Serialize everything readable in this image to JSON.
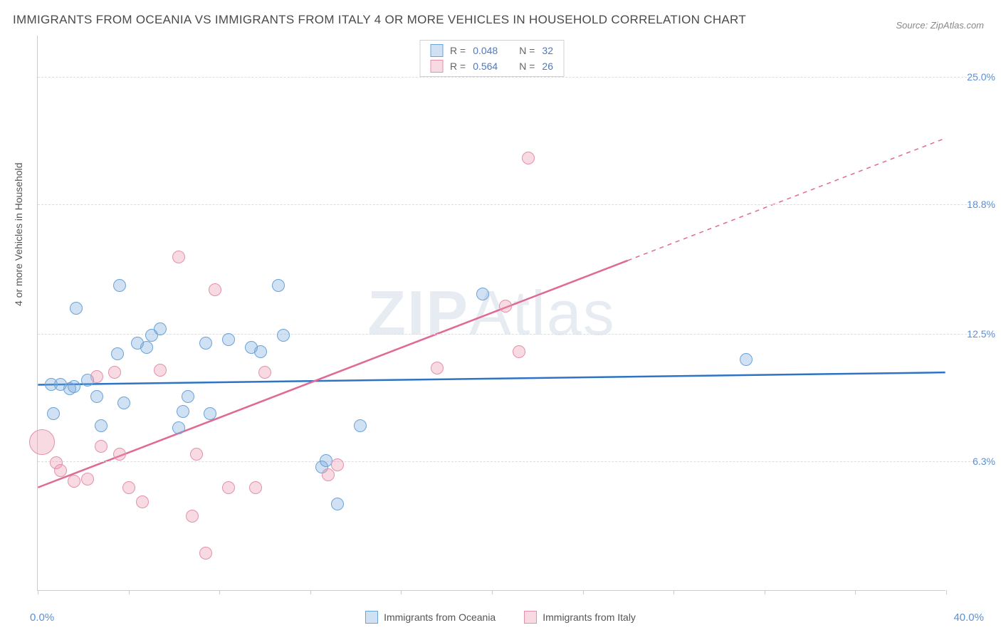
{
  "title": "IMMIGRANTS FROM OCEANIA VS IMMIGRANTS FROM ITALY 4 OR MORE VEHICLES IN HOUSEHOLD CORRELATION CHART",
  "source": "Source: ZipAtlas.com",
  "y_axis_label": "4 or more Vehicles in Household",
  "watermark_prefix": "ZIP",
  "watermark_suffix": "Atlas",
  "chart": {
    "type": "scatter",
    "background_color": "#ffffff",
    "grid_color": "#dddddd",
    "axis_color": "#cccccc",
    "tick_label_color": "#5a8fd6",
    "xlim": [
      0.0,
      40.0
    ],
    "ylim": [
      0.0,
      27.0
    ],
    "x_min_label": "0.0%",
    "x_max_label": "40.0%",
    "x_tick_positions": [
      0,
      4,
      8,
      12,
      16,
      20,
      24,
      28,
      32,
      36,
      40
    ],
    "y_ticks": [
      {
        "value": 6.3,
        "label": "6.3%"
      },
      {
        "value": 12.5,
        "label": "12.5%"
      },
      {
        "value": 18.8,
        "label": "18.8%"
      },
      {
        "value": 25.0,
        "label": "25.0%"
      }
    ],
    "series": [
      {
        "id": "oceania",
        "label": "Immigrants from Oceania",
        "fill": "rgba(120,170,220,0.35)",
        "stroke": "#6aa3d8",
        "r_label": "R =",
        "r_value": "0.048",
        "n_label": "N =",
        "n_value": "32",
        "marker_radius": 9,
        "trend": {
          "color": "#2e74c4",
          "width": 2.5,
          "y_at_xmin": 10.0,
          "y_at_xmax": 10.6,
          "solid_until_x": 40.0
        },
        "points": [
          {
            "x": 0.6,
            "y": 10.0
          },
          {
            "x": 0.7,
            "y": 8.6
          },
          {
            "x": 1.0,
            "y": 10.0
          },
          {
            "x": 1.4,
            "y": 9.8
          },
          {
            "x": 1.6,
            "y": 9.9
          },
          {
            "x": 1.7,
            "y": 13.7
          },
          {
            "x": 2.2,
            "y": 10.2
          },
          {
            "x": 2.6,
            "y": 9.4
          },
          {
            "x": 2.8,
            "y": 8.0
          },
          {
            "x": 3.5,
            "y": 11.5
          },
          {
            "x": 3.6,
            "y": 14.8
          },
          {
            "x": 3.8,
            "y": 9.1
          },
          {
            "x": 4.4,
            "y": 12.0
          },
          {
            "x": 4.8,
            "y": 11.8
          },
          {
            "x": 5.0,
            "y": 12.4
          },
          {
            "x": 5.4,
            "y": 12.7
          },
          {
            "x": 6.2,
            "y": 7.9
          },
          {
            "x": 6.4,
            "y": 8.7
          },
          {
            "x": 6.6,
            "y": 9.4
          },
          {
            "x": 7.4,
            "y": 12.0
          },
          {
            "x": 7.6,
            "y": 8.6
          },
          {
            "x": 8.4,
            "y": 12.2
          },
          {
            "x": 9.4,
            "y": 11.8
          },
          {
            "x": 9.8,
            "y": 11.6
          },
          {
            "x": 10.6,
            "y": 14.8
          },
          {
            "x": 10.8,
            "y": 12.4
          },
          {
            "x": 12.5,
            "y": 6.0
          },
          {
            "x": 12.7,
            "y": 6.3
          },
          {
            "x": 13.2,
            "y": 4.2
          },
          {
            "x": 14.2,
            "y": 8.0
          },
          {
            "x": 19.6,
            "y": 14.4
          },
          {
            "x": 31.2,
            "y": 11.2
          }
        ]
      },
      {
        "id": "italy",
        "label": "Immigrants from Italy",
        "fill": "rgba(235,150,175,0.35)",
        "stroke": "#e590ab",
        "r_label": "R =",
        "r_value": "0.564",
        "n_label": "N =",
        "n_value": "26",
        "marker_radius": 9,
        "trend": {
          "color": "#e06a93",
          "width": 2.5,
          "y_at_xmin": 5.0,
          "y_at_xmax": 22.0,
          "solid_until_x": 26.0
        },
        "points": [
          {
            "x": 0.2,
            "y": 7.2,
            "r": 18
          },
          {
            "x": 0.8,
            "y": 6.2
          },
          {
            "x": 1.0,
            "y": 5.8
          },
          {
            "x": 1.6,
            "y": 5.3
          },
          {
            "x": 2.2,
            "y": 5.4
          },
          {
            "x": 2.6,
            "y": 10.4
          },
          {
            "x": 2.8,
            "y": 7.0
          },
          {
            "x": 3.4,
            "y": 10.6
          },
          {
            "x": 3.6,
            "y": 6.6
          },
          {
            "x": 4.0,
            "y": 5.0
          },
          {
            "x": 4.6,
            "y": 4.3
          },
          {
            "x": 5.4,
            "y": 10.7
          },
          {
            "x": 6.2,
            "y": 16.2
          },
          {
            "x": 6.8,
            "y": 3.6
          },
          {
            "x": 7.0,
            "y": 6.6
          },
          {
            "x": 7.4,
            "y": 1.8
          },
          {
            "x": 7.8,
            "y": 14.6
          },
          {
            "x": 8.4,
            "y": 5.0
          },
          {
            "x": 9.6,
            "y": 5.0
          },
          {
            "x": 10.0,
            "y": 10.6
          },
          {
            "x": 12.8,
            "y": 5.6
          },
          {
            "x": 13.2,
            "y": 6.1
          },
          {
            "x": 17.6,
            "y": 10.8
          },
          {
            "x": 20.6,
            "y": 13.8
          },
          {
            "x": 21.2,
            "y": 11.6
          },
          {
            "x": 21.6,
            "y": 21.0
          }
        ]
      }
    ]
  },
  "legend_top_border": "#d0d0d0"
}
